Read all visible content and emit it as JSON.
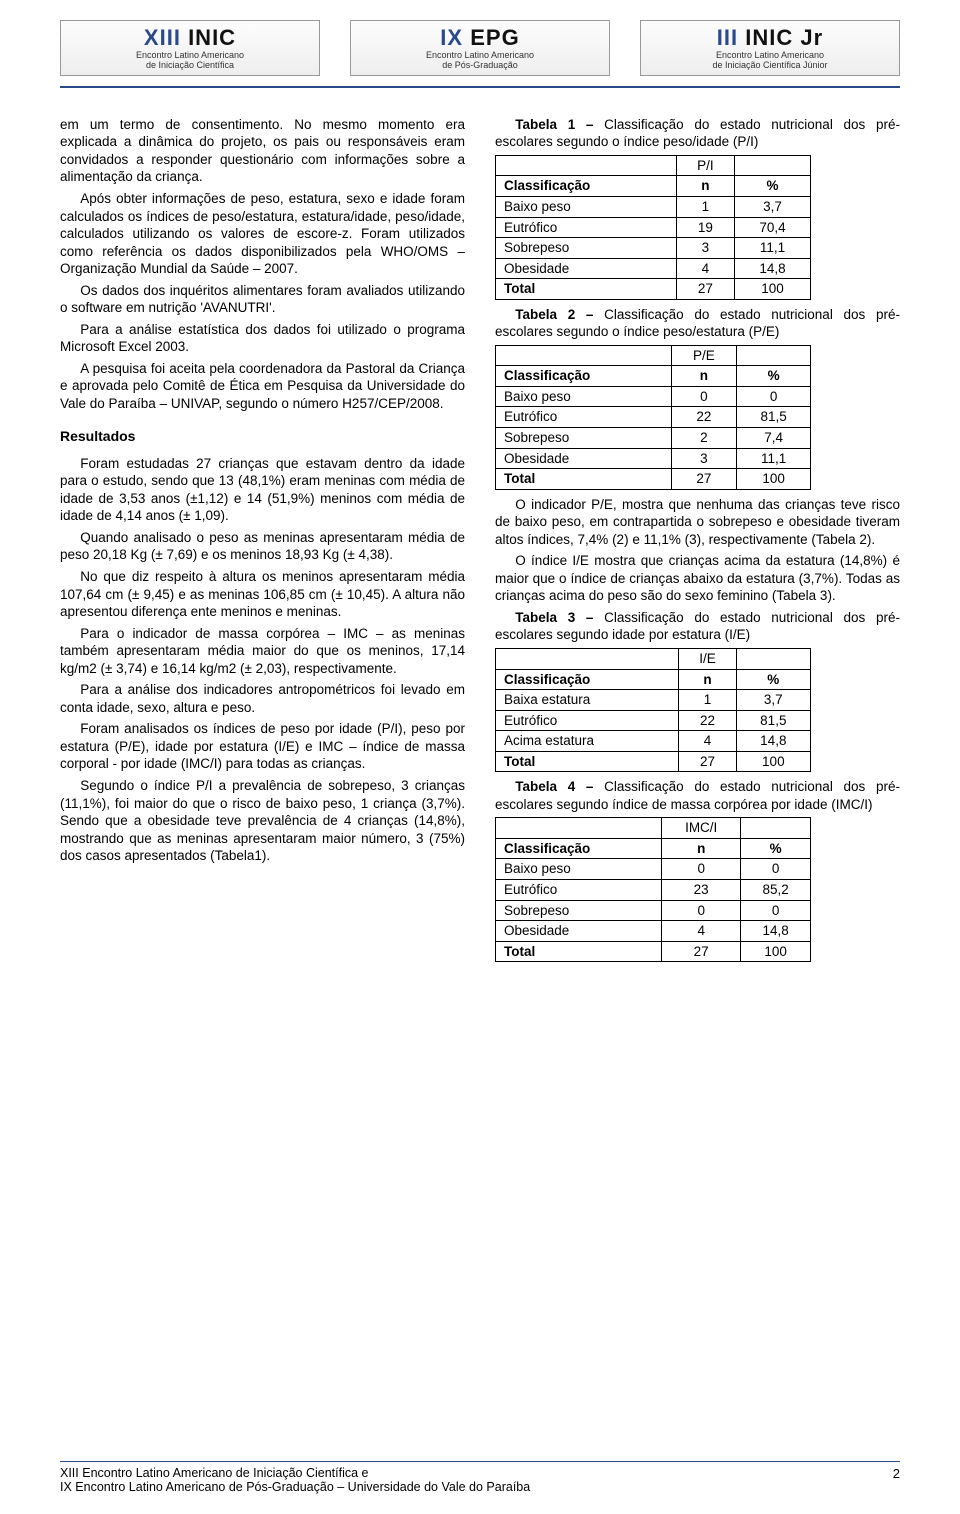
{
  "logos": [
    {
      "big_pre": "XIII",
      "big_post": "INIC",
      "l1": "Encontro Latino Americano",
      "l2": "de Iniciação Científica"
    },
    {
      "big_pre": "IX",
      "big_post": "EPG",
      "l1": "Encontro Latino Americano",
      "l2": "de Pós-Graduação"
    },
    {
      "big_pre": "III",
      "big_post": "INIC Jr",
      "l1": "Encontro Latino Americano",
      "l2": "de Iniciação Científica Júnior"
    }
  ],
  "left": {
    "p1": "em um termo de consentimento. No mesmo momento era explicada a dinâmica do projeto, os pais ou responsáveis eram convidados a responder questionário com informações sobre a alimentação da criança.",
    "p2": "Após obter informações de peso, estatura, sexo e idade foram calculados os índices de peso/estatura, estatura/idade, peso/idade, calculados utilizando os valores de escore-z. Foram utilizados como referência os dados disponibilizados pela WHO/OMS – Organização Mundial da Saúde – 2007.",
    "p3": "Os dados dos inquéritos alimentares foram avaliados utilizando o software em nutrição 'AVANUTRI'.",
    "p4": "Para a análise estatística dos dados foi utilizado o programa Microsoft Excel 2003.",
    "p5": "A pesquisa foi aceita pela coordenadora da Pastoral da Criança e aprovada pelo Comitê de Ética em Pesquisa da Universidade do Vale do Paraíba – UNIVAP, segundo o número H257/CEP/2008.",
    "h_results": "Resultados",
    "p6": "Foram estudadas 27 crianças que estavam dentro da idade para o estudo, sendo que 13 (48,1%) eram meninas com média de idade de 3,53 anos (±1,12) e 14 (51,9%) meninos com média de idade de 4,14 anos (± 1,09).",
    "p7": "Quando analisado o peso as meninas apresentaram média de peso 20,18 Kg (± 7,69) e os meninos 18,93 Kg (± 4,38).",
    "p8": "No que diz respeito à altura os meninos apresentaram média 107,64 cm (± 9,45) e as meninas 106,85 cm (± 10,45). A altura não apresentou diferença ente meninos e meninas.",
    "p9": "Para o indicador de massa corpórea – IMC – as meninas também apresentaram média maior do que os meninos, 17,14 kg/m2 (± 3,74) e 16,14 kg/m2 (± 2,03), respectivamente.",
    "p10": "Para a análise dos indicadores antropométricos foi levado em conta idade, sexo, altura e peso.",
    "p11": "Foram analisados os índices de peso por idade (P/I), peso por estatura (P/E), idade por estatura (I/E) e IMC – índice de massa corporal - por idade (IMC/I) para todas as crianças.",
    "p12": "Segundo o índice P/I a prevalência de sobrepeso, 3 crianças (11,1%), foi maior do que o risco de baixo peso, 1 criança (3,7%). Sendo que a obesidade teve prevalência de 4 crianças (14,8%), mostrando que as meninas apresentaram maior número, 3 (75%) dos casos apresentados (Tabela1)."
  },
  "right": {
    "t1_cap_b": "Tabela 1 –",
    "t1_cap": " Classificação do estado nutricional dos pré-escolares segundo o índice peso/idade (P/I)",
    "t1_header": "P/I",
    "cols": {
      "c1": "Classificação",
      "c2": "n",
      "c3": "%"
    },
    "t1_rows": [
      {
        "c": "Baixo peso",
        "n": "1",
        "p": "3,7"
      },
      {
        "c": "Eutrófico",
        "n": "19",
        "p": "70,4"
      },
      {
        "c": "Sobrepeso",
        "n": "3",
        "p": "11,1"
      },
      {
        "c": "Obesidade",
        "n": "4",
        "p": "14,8"
      },
      {
        "c": "Total",
        "n": "27",
        "p": "100"
      }
    ],
    "t2_cap_b": "Tabela 2 –",
    "t2_cap": " Classificação do estado nutricional dos pré-escolares segundo o índice peso/estatura (P/E)",
    "t2_header": "P/E",
    "t2_rows": [
      {
        "c": "Baixo peso",
        "n": "0",
        "p": "0"
      },
      {
        "c": "Eutrófico",
        "n": "22",
        "p": "81,5"
      },
      {
        "c": "Sobrepeso",
        "n": "2",
        "p": "7,4"
      },
      {
        "c": "Obesidade",
        "n": "3",
        "p": "11,1"
      },
      {
        "c": "Total",
        "n": "27",
        "p": "100"
      }
    ],
    "p_after_t2a": "O indicador P/E, mostra que nenhuma das crianças teve risco de baixo peso, em contrapartida o sobrepeso e obesidade tiveram altos índices, 7,4% (2) e 11,1% (3), respectivamente (Tabela 2).",
    "p_after_t2b": "O índice I/E mostra que crianças acima da estatura (14,8%) é maior que o índice de crianças abaixo da estatura (3,7%). Todas as crianças acima do peso são do sexo feminino (Tabela 3).",
    "t3_cap_b": "Tabela 3 –",
    "t3_cap": " Classificação do estado nutricional dos pré-escolares segundo idade por estatura (I/E)",
    "t3_header": "I/E",
    "t3_rows": [
      {
        "c": "Baixa estatura",
        "n": "1",
        "p": "3,7"
      },
      {
        "c": "Eutrófico",
        "n": "22",
        "p": "81,5"
      },
      {
        "c": "Acima estatura",
        "n": "4",
        "p": "14,8"
      },
      {
        "c": "Total",
        "n": "27",
        "p": "100"
      }
    ],
    "t4_cap_b": "Tabela 4 –",
    "t4_cap": " Classificação do estado nutricional dos pré-escolares segundo índice de massa corpórea por idade (IMC/I)",
    "t4_header": "IMC/I",
    "t4_rows": [
      {
        "c": "Baixo peso",
        "n": "0",
        "p": "0"
      },
      {
        "c": "Eutrófico",
        "n": "23",
        "p": "85,2"
      },
      {
        "c": "Sobrepeso",
        "n": "0",
        "p": "0"
      },
      {
        "c": "Obesidade",
        "n": "4",
        "p": "14,8"
      },
      {
        "c": "Total",
        "n": "27",
        "p": "100"
      }
    ]
  },
  "footer": {
    "line1": "XIII Encontro Latino Americano de Iniciação Científica e",
    "line2": "IX Encontro Latino Americano de Pós-Graduação – Universidade do Vale do Paraíba",
    "page": "2"
  }
}
